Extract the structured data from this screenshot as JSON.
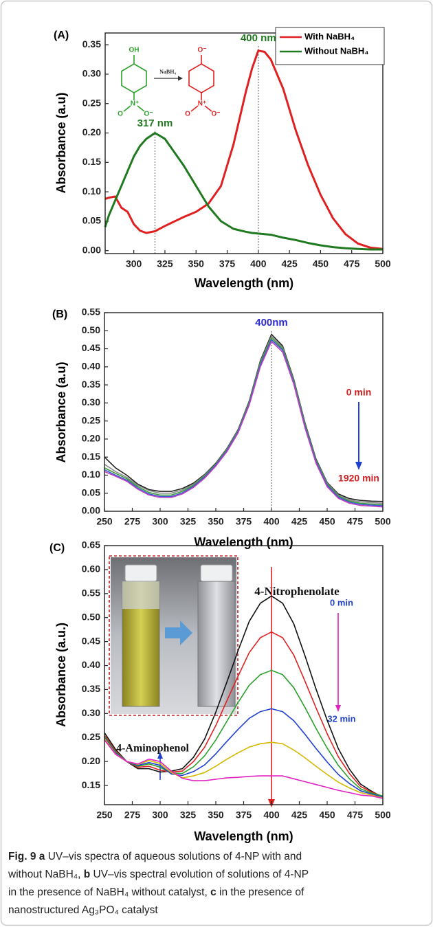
{
  "chart_data": [
    {
      "type": "line",
      "panel": "(A)",
      "x_label": "Wavelength (nm)",
      "y_label": "Absorbance (a.u)",
      "legend": "upper right",
      "xlim": [
        277,
        500
      ],
      "ylim": [
        -0.005,
        0.37
      ],
      "xticks": [
        300,
        325,
        350,
        375,
        400,
        425,
        450,
        475,
        500
      ],
      "yticks": [
        {
          "value": 0,
          "label": "0.00"
        },
        {
          "value": 0.05,
          "label": "0.05"
        },
        {
          "value": 0.1,
          "label": "0.10"
        },
        {
          "value": 0.15,
          "label": "0.15"
        },
        {
          "value": 0.2,
          "label": "0.20"
        },
        {
          "value": 0.25,
          "label": "0.25"
        },
        {
          "value": 0.3,
          "label": "0.30"
        },
        {
          "value": 0.35,
          "label": "0.35"
        }
      ],
      "x": [
        277,
        280,
        285,
        290,
        295,
        300,
        305,
        310,
        317,
        325,
        330,
        340,
        350,
        360,
        370,
        380,
        390,
        395,
        400,
        405,
        410,
        420,
        430,
        440,
        450,
        460,
        470,
        480,
        490,
        500
      ],
      "series": [
        {
          "name": "With NaBH₄",
          "color": "#e02020",
          "values": [
            0.088,
            0.09,
            0.092,
            0.073,
            0.066,
            0.045,
            0.034,
            0.03,
            0.033,
            0.042,
            0.047,
            0.057,
            0.066,
            0.08,
            0.11,
            0.18,
            0.27,
            0.31,
            0.34,
            0.338,
            0.325,
            0.275,
            0.205,
            0.145,
            0.095,
            0.055,
            0.028,
            0.012,
            0.005,
            0.003
          ]
        },
        {
          "name": "Without NaBH₄",
          "color": "#1f7a1f",
          "values": [
            0.04,
            0.06,
            0.085,
            0.11,
            0.135,
            0.16,
            0.178,
            0.19,
            0.2,
            0.19,
            0.175,
            0.145,
            0.11,
            0.075,
            0.05,
            0.037,
            0.032,
            0.03,
            0.029,
            0.028,
            0.027,
            0.022,
            0.018,
            0.013,
            0.009,
            0.006,
            0.004,
            0.003,
            0.002,
            0.002
          ]
        }
      ],
      "vlines": [
        {
          "x": 317,
          "label": "317 nm",
          "color": "#1f7a1f"
        },
        {
          "x": 400,
          "label": "400 nm",
          "color": "#1f7a1f"
        }
      ],
      "scheme": {
        "reactant": [
          "OH",
          "N⁺",
          "O",
          "O⁻"
        ],
        "reagent": "NaBH₄",
        "product": [
          "O⁻",
          "N⁺",
          "O",
          "O⁻"
        ]
      }
    },
    {
      "type": "line",
      "panel": "(B)",
      "x_label": "Wavelength (nm)",
      "y_label": "Absorbance (a.u)",
      "xlim": [
        250,
        500
      ],
      "ylim": [
        0,
        0.55
      ],
      "xticks": [
        250,
        275,
        300,
        325,
        350,
        375,
        400,
        425,
        450,
        475,
        500
      ],
      "yticks": [
        {
          "value": 0,
          "label": "0.00"
        },
        {
          "value": 0.05,
          "label": "0.05"
        },
        {
          "value": 0.1,
          "label": "0.10"
        },
        {
          "value": 0.15,
          "label": "0.15"
        },
        {
          "value": 0.2,
          "label": "0.20"
        },
        {
          "value": 0.25,
          "label": "0.25"
        },
        {
          "value": 0.3,
          "label": "0.30"
        },
        {
          "value": 0.35,
          "label": "0.35"
        },
        {
          "value": 0.4,
          "label": "0.40"
        },
        {
          "value": 0.45,
          "label": "0.45"
        },
        {
          "value": 0.5,
          "label": "0.50"
        },
        {
          "value": 0.55,
          "label": "0.55"
        }
      ],
      "x": [
        250,
        260,
        270,
        280,
        290,
        300,
        310,
        320,
        330,
        340,
        350,
        360,
        370,
        380,
        390,
        400,
        410,
        420,
        430,
        440,
        450,
        460,
        470,
        480,
        490,
        500
      ],
      "series": [
        {
          "color": "#222222",
          "values": [
            0.15,
            0.12,
            0.1,
            0.075,
            0.06,
            0.055,
            0.055,
            0.063,
            0.078,
            0.102,
            0.133,
            0.174,
            0.226,
            0.305,
            0.417,
            0.49,
            0.458,
            0.366,
            0.246,
            0.145,
            0.08,
            0.048,
            0.035,
            0.03,
            0.028,
            0.027
          ]
        },
        {
          "color": "#8a8a8a",
          "values": [
            0.13,
            0.11,
            0.094,
            0.072,
            0.057,
            0.05,
            0.05,
            0.059,
            0.075,
            0.1,
            0.131,
            0.172,
            0.224,
            0.302,
            0.413,
            0.485,
            0.454,
            0.363,
            0.243,
            0.142,
            0.078,
            0.045,
            0.031,
            0.026,
            0.024,
            0.022
          ]
        },
        {
          "color": "#3a9a3a",
          "values": [
            0.12,
            0.105,
            0.09,
            0.068,
            0.052,
            0.045,
            0.045,
            0.055,
            0.072,
            0.098,
            0.13,
            0.17,
            0.222,
            0.3,
            0.41,
            0.48,
            0.45,
            0.36,
            0.24,
            0.14,
            0.075,
            0.042,
            0.028,
            0.022,
            0.02,
            0.018
          ]
        },
        {
          "color": "#3b5bd0",
          "values": [
            0.115,
            0.1,
            0.086,
            0.064,
            0.048,
            0.041,
            0.041,
            0.051,
            0.069,
            0.095,
            0.128,
            0.168,
            0.22,
            0.297,
            0.405,
            0.475,
            0.446,
            0.356,
            0.236,
            0.137,
            0.072,
            0.039,
            0.025,
            0.019,
            0.017,
            0.015
          ]
        },
        {
          "color": "#c040c0",
          "values": [
            0.11,
            0.097,
            0.083,
            0.061,
            0.045,
            0.038,
            0.038,
            0.048,
            0.066,
            0.092,
            0.125,
            0.165,
            0.217,
            0.294,
            0.4,
            0.47,
            0.441,
            0.352,
            0.232,
            0.133,
            0.068,
            0.036,
            0.022,
            0.016,
            0.014,
            0.012
          ]
        }
      ],
      "vlines": [
        {
          "x": 400,
          "label": "400nm",
          "color": "#2a2ad0"
        }
      ],
      "annotations": [
        "0 min",
        "1920 min"
      ]
    },
    {
      "type": "line",
      "panel": "(C)",
      "x_label": "Wavelength (nm)",
      "y_label": "Absorbance (a.u.)",
      "xlim": [
        250,
        500
      ],
      "ylim": [
        0.11,
        0.65
      ],
      "xticks": [
        250,
        275,
        300,
        325,
        350,
        375,
        400,
        425,
        450,
        475,
        500
      ],
      "yticks": [
        {
          "value": 0.15,
          "label": "0.15"
        },
        {
          "value": 0.2,
          "label": "0.20"
        },
        {
          "value": 0.25,
          "label": "0.25"
        },
        {
          "value": 0.3,
          "label": "0.30"
        },
        {
          "value": 0.35,
          "label": "0.35"
        },
        {
          "value": 0.4,
          "label": "0.40"
        },
        {
          "value": 0.45,
          "label": "0.45"
        },
        {
          "value": 0.5,
          "label": "0.50"
        },
        {
          "value": 0.55,
          "label": "0.55"
        },
        {
          "value": 0.6,
          "label": "0.60"
        },
        {
          "value": 0.65,
          "label": "0.65"
        }
      ],
      "x": [
        250,
        260,
        270,
        280,
        290,
        300,
        310,
        320,
        330,
        340,
        350,
        360,
        370,
        380,
        390,
        400,
        410,
        420,
        430,
        440,
        450,
        460,
        470,
        480,
        490,
        500
      ],
      "series": [
        {
          "color": "#111111",
          "values": [
            0.26,
            0.225,
            0.2,
            0.185,
            0.185,
            0.178,
            0.18,
            0.185,
            0.209,
            0.247,
            0.303,
            0.366,
            0.431,
            0.492,
            0.53,
            0.545,
            0.53,
            0.487,
            0.421,
            0.351,
            0.286,
            0.227,
            0.184,
            0.153,
            0.138,
            0.125
          ]
        },
        {
          "color": "#e02020",
          "values": [
            0.255,
            0.222,
            0.2,
            0.188,
            0.19,
            0.182,
            0.178,
            0.18,
            0.2,
            0.23,
            0.275,
            0.327,
            0.378,
            0.427,
            0.458,
            0.47,
            0.458,
            0.422,
            0.368,
            0.312,
            0.258,
            0.21,
            0.175,
            0.148,
            0.136,
            0.127
          ]
        },
        {
          "color": "#2aa02a",
          "values": [
            0.252,
            0.22,
            0.2,
            0.19,
            0.195,
            0.188,
            0.176,
            0.175,
            0.189,
            0.212,
            0.245,
            0.284,
            0.323,
            0.359,
            0.381,
            0.39,
            0.381,
            0.354,
            0.313,
            0.269,
            0.228,
            0.192,
            0.164,
            0.143,
            0.134,
            0.128
          ]
        },
        {
          "color": "#2040d0",
          "values": [
            0.25,
            0.218,
            0.2,
            0.192,
            0.198,
            0.192,
            0.174,
            0.171,
            0.179,
            0.193,
            0.216,
            0.242,
            0.267,
            0.29,
            0.304,
            0.31,
            0.304,
            0.285,
            0.257,
            0.227,
            0.199,
            0.173,
            0.154,
            0.139,
            0.132,
            0.126
          ]
        },
        {
          "color": "#d4b800",
          "values": [
            0.248,
            0.216,
            0.2,
            0.194,
            0.202,
            0.196,
            0.177,
            0.166,
            0.17,
            0.177,
            0.19,
            0.205,
            0.218,
            0.23,
            0.237,
            0.24,
            0.237,
            0.224,
            0.208,
            0.19,
            0.173,
            0.157,
            0.145,
            0.135,
            0.13,
            0.124
          ]
        },
        {
          "color": "#e020c0",
          "values": [
            0.245,
            0.215,
            0.2,
            0.195,
            0.205,
            0.2,
            0.18,
            0.165,
            0.16,
            0.16,
            0.163,
            0.166,
            0.167,
            0.169,
            0.17,
            0.17,
            0.17,
            0.164,
            0.158,
            0.152,
            0.146,
            0.14,
            0.135,
            0.13,
            0.128,
            0.123
          ]
        }
      ],
      "annotations": [
        "4-Nitrophenolate",
        "4-Aminophenol",
        "0 min",
        "32 min"
      ]
    }
  ],
  "caption": [
    [
      {
        "text": "Fig. 9",
        "bold": true
      },
      {
        "text": " a",
        "bold": true
      },
      {
        "text": " UV–vis spectra of aqueous solutions of 4-NP with and"
      }
    ],
    [
      {
        "text": "without NaBH₄,"
      },
      {
        "text": " b",
        "bold": true
      },
      {
        "text": " UV–vis spectral evolution of solutions of 4-NP"
      }
    ],
    [
      {
        "text": "in the presence of NaBH₄ without catalyst,"
      },
      {
        "text": " c",
        "bold": true
      },
      {
        "text": " in the presence of"
      }
    ],
    [
      {
        "text": "nanostructured Ag₃PO₄ catalyst"
      }
    ]
  ]
}
